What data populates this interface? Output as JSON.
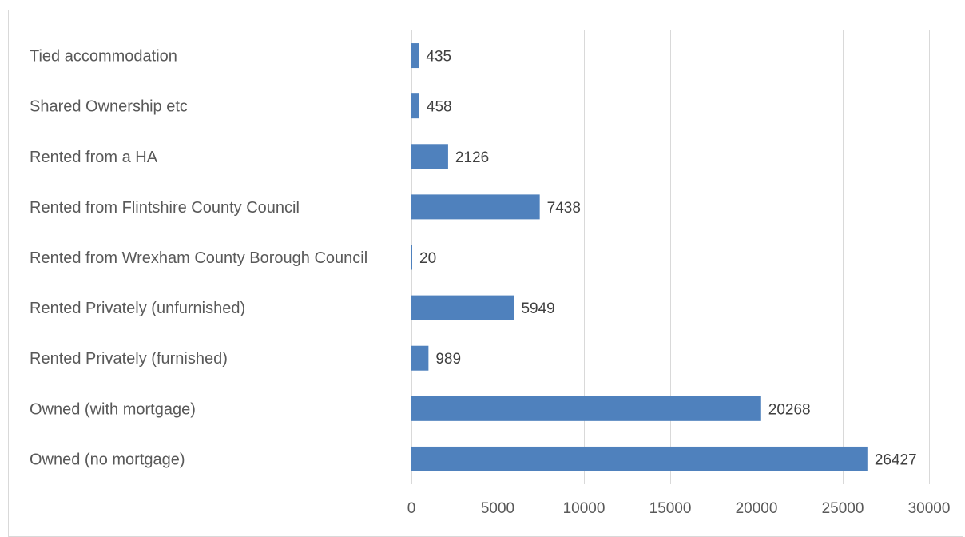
{
  "chart_data": {
    "type": "bar",
    "orientation": "horizontal",
    "title": "",
    "xlabel": "",
    "ylabel": "",
    "categories": [
      "Tied accommodation",
      "Shared Ownership etc",
      "Rented from a HA",
      "Rented from Flintshire County Council",
      "Rented from Wrexham County Borough Council",
      "Rented Privately (unfurnished)",
      "Rented Privately (furnished)",
      "Owned (with mortgage)",
      "Owned (no mortgage)"
    ],
    "values": [
      435,
      458,
      2126,
      7438,
      20,
      5949,
      989,
      20268,
      26427
    ],
    "value_labels": [
      "435",
      "458",
      "2126",
      "7438",
      "20",
      "5949",
      "989",
      "20268",
      "26427"
    ],
    "xlim": [
      0,
      30000
    ],
    "ticks": [
      0,
      5000,
      10000,
      15000,
      20000,
      25000,
      30000
    ],
    "tick_labels": [
      "0",
      "5000",
      "10000",
      "15000",
      "20000",
      "25000",
      "30000"
    ],
    "grid": "vertical",
    "legend": "none",
    "bar_color": "#4f81bd"
  }
}
